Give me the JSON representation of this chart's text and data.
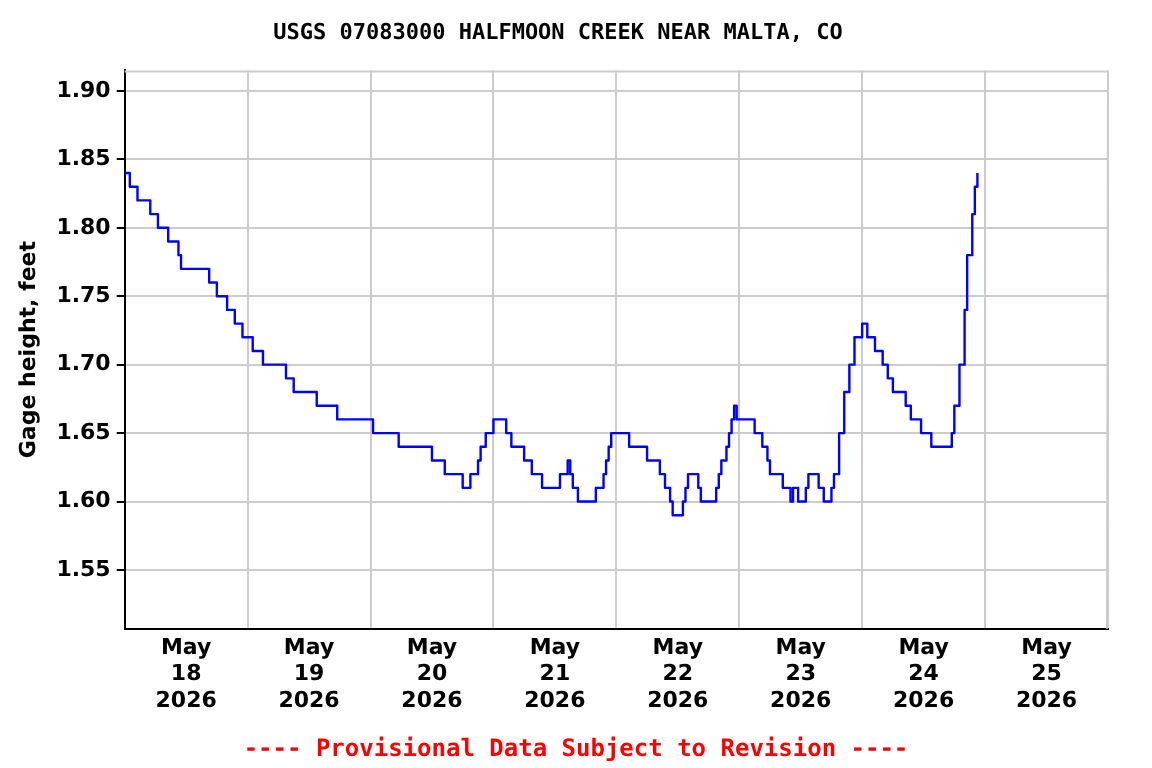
{
  "chart_data": {
    "type": "step",
    "title": "USGS 07083000 HALFMOON CREEK NEAR MALTA, CO",
    "ylabel": "Gage height, feet",
    "x": [
      "2026-05-18T00:00",
      "2026-05-18T01:00",
      "2026-05-18T02:30",
      "2026-05-18T05:00",
      "2026-05-18T06:30",
      "2026-05-18T08:30",
      "2026-05-18T10:30",
      "2026-05-18T11:00",
      "2026-05-18T16:30",
      "2026-05-18T18:00",
      "2026-05-18T20:00",
      "2026-05-18T21:30",
      "2026-05-18T23:00",
      "2026-05-19T01:00",
      "2026-05-19T03:00",
      "2026-05-19T07:30",
      "2026-05-19T09:00",
      "2026-05-19T13:30",
      "2026-05-19T17:30",
      "2026-05-20T00:30",
      "2026-05-20T05:30",
      "2026-05-20T12:00",
      "2026-05-20T14:30",
      "2026-05-20T18:00",
      "2026-05-20T19:30",
      "2026-05-20T21:00",
      "2026-05-20T21:30",
      "2026-05-20T22:30",
      "2026-05-21T00:00",
      "2026-05-21T02:30",
      "2026-05-21T03:30",
      "2026-05-21T06:00",
      "2026-05-21T07:30",
      "2026-05-21T09:30",
      "2026-05-21T13:00",
      "2026-05-21T14:30",
      "2026-05-21T15:00",
      "2026-05-21T15:30",
      "2026-05-21T16:30",
      "2026-05-21T20:00",
      "2026-05-21T21:30",
      "2026-05-21T22:00",
      "2026-05-21T22:30",
      "2026-05-21T23:00",
      "2026-05-22T02:30",
      "2026-05-22T06:00",
      "2026-05-22T08:30",
      "2026-05-22T09:30",
      "2026-05-22T10:30",
      "2026-05-22T11:00",
      "2026-05-22T13:00",
      "2026-05-22T13:30",
      "2026-05-22T14:00",
      "2026-05-22T16:00",
      "2026-05-22T16:30",
      "2026-05-22T19:30",
      "2026-05-22T20:00",
      "2026-05-22T20:30",
      "2026-05-22T21:30",
      "2026-05-22T22:00",
      "2026-05-22T22:30",
      "2026-05-22T23:00",
      "2026-05-22T23:30",
      "2026-05-23T03:00",
      "2026-05-23T04:30",
      "2026-05-23T05:30",
      "2026-05-23T06:00",
      "2026-05-23T08:30",
      "2026-05-23T10:00",
      "2026-05-23T10:30",
      "2026-05-23T11:30",
      "2026-05-23T13:00",
      "2026-05-23T13:30",
      "2026-05-23T15:30",
      "2026-05-23T16:30",
      "2026-05-23T18:00",
      "2026-05-23T18:30",
      "2026-05-23T19:30",
      "2026-05-23T20:30",
      "2026-05-23T21:30",
      "2026-05-23T22:30",
      "2026-05-24T00:00",
      "2026-05-24T01:00",
      "2026-05-24T02:30",
      "2026-05-24T04:00",
      "2026-05-24T05:00",
      "2026-05-24T06:00",
      "2026-05-24T08:30",
      "2026-05-24T09:30",
      "2026-05-24T11:30",
      "2026-05-24T13:30",
      "2026-05-24T17:30",
      "2026-05-24T18:00",
      "2026-05-24T19:00",
      "2026-05-24T20:00",
      "2026-05-24T20:30",
      "2026-05-24T21:30",
      "2026-05-24T22:00",
      "2026-05-24T22:30"
    ],
    "series": [
      {
        "color": "#0000ff",
        "values": [
          1.84,
          1.83,
          1.82,
          1.81,
          1.8,
          1.79,
          1.78,
          1.77,
          1.76,
          1.75,
          1.74,
          1.73,
          1.72,
          1.71,
          1.7,
          1.69,
          1.68,
          1.67,
          1.66,
          1.65,
          1.64,
          1.63,
          1.62,
          1.61,
          1.62,
          1.63,
          1.64,
          1.65,
          1.66,
          1.65,
          1.64,
          1.63,
          1.62,
          1.61,
          1.62,
          1.63,
          1.62,
          1.61,
          1.6,
          1.61,
          1.62,
          1.63,
          1.64,
          1.65,
          1.64,
          1.63,
          1.62,
          1.61,
          1.6,
          1.59,
          1.6,
          1.61,
          1.62,
          1.61,
          1.6,
          1.61,
          1.62,
          1.63,
          1.64,
          1.65,
          1.66,
          1.67,
          1.66,
          1.65,
          1.64,
          1.63,
          1.62,
          1.61,
          1.6,
          1.61,
          1.6,
          1.61,
          1.62,
          1.61,
          1.6,
          1.61,
          1.62,
          1.65,
          1.68,
          1.7,
          1.72,
          1.73,
          1.72,
          1.71,
          1.7,
          1.69,
          1.68,
          1.67,
          1.66,
          1.65,
          1.64,
          1.65,
          1.67,
          1.7,
          1.74,
          1.78,
          1.81,
          1.83,
          1.84
        ]
      }
    ],
    "xlim": [
      "2026-05-18T00:00",
      "2026-05-26T00:00"
    ],
    "xticks": [
      {
        "value": "2026-05-18T00:00",
        "label": null
      },
      {
        "value": "2026-05-18T12:00",
        "label": "May\n18\n2026"
      },
      {
        "value": "2026-05-19T00:00",
        "label": null
      },
      {
        "value": "2026-05-19T12:00",
        "label": "May\n19\n2026"
      },
      {
        "value": "2026-05-20T00:00",
        "label": null
      },
      {
        "value": "2026-05-20T12:00",
        "label": "May\n20\n2026"
      },
      {
        "value": "2026-05-21T00:00",
        "label": null
      },
      {
        "value": "2026-05-21T12:00",
        "label": "May\n21\n2026"
      },
      {
        "value": "2026-05-22T00:00",
        "label": null
      },
      {
        "value": "2026-05-22T12:00",
        "label": "May\n22\n2026"
      },
      {
        "value": "2026-05-23T00:00",
        "label": null
      },
      {
        "value": "2026-05-23T12:00",
        "label": "May\n23\n2026"
      },
      {
        "value": "2026-05-24T00:00",
        "label": null
      },
      {
        "value": "2026-05-24T12:00",
        "label": "May\n24\n2026"
      },
      {
        "value": "2026-05-25T00:00",
        "label": null
      },
      {
        "value": "2026-05-25T12:00",
        "label": "May\n25\n2026"
      },
      {
        "value": "2026-05-26T00:00",
        "label": null
      }
    ],
    "ylim": [
      1.507,
      1.915
    ],
    "yticks": [
      {
        "value": 1.55,
        "label": "1.55"
      },
      {
        "value": 1.6,
        "label": "1.60"
      },
      {
        "value": 1.65,
        "label": "1.65"
      },
      {
        "value": 1.7,
        "label": "1.70"
      },
      {
        "value": 1.75,
        "label": "1.75"
      },
      {
        "value": 1.8,
        "label": "1.80"
      },
      {
        "value": 1.85,
        "label": "1.85"
      },
      {
        "value": 1.9,
        "label": "1.90"
      }
    ],
    "grid": true,
    "legend": false,
    "line_style": "solid",
    "marker": "none",
    "annotations": [
      "---- Provisional Data Subject to Revision ----"
    ]
  }
}
